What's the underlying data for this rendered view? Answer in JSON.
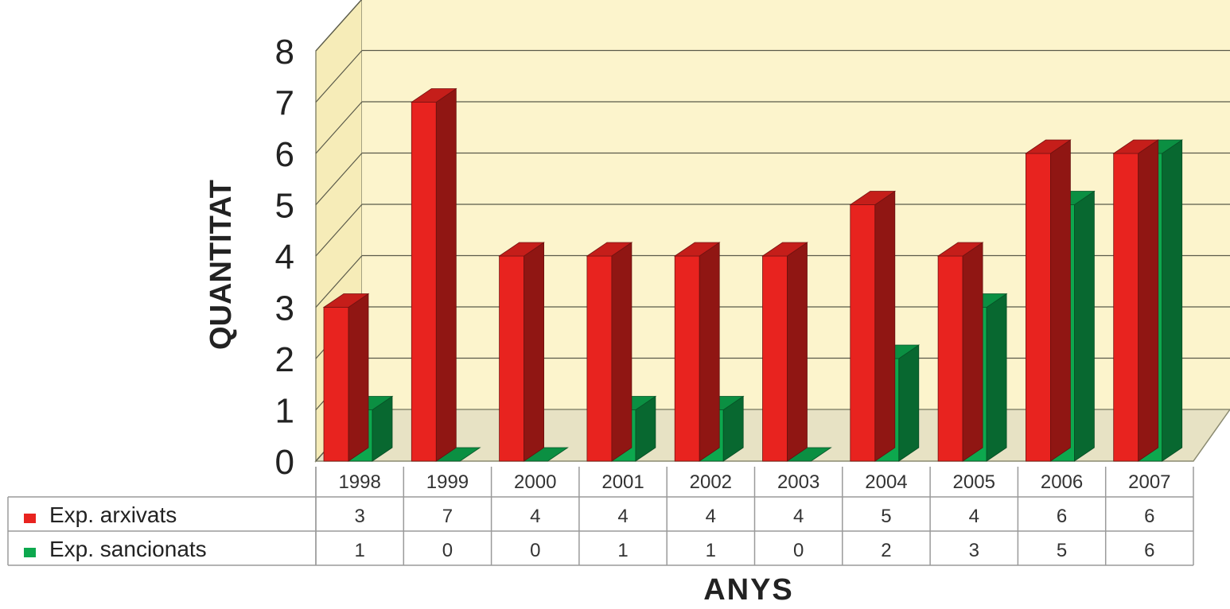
{
  "chart_data": {
    "type": "bar",
    "title": "",
    "xlabel": "ANYS",
    "ylabel": "QUANTITAT",
    "ylim": [
      0,
      8
    ],
    "yticks": [
      "0",
      "1",
      "2",
      "3",
      "4",
      "5",
      "6",
      "7",
      "8"
    ],
    "grid": true,
    "three_d": true,
    "legend_placement": "bottom-left data table",
    "categories": [
      "1998",
      "1999",
      "2000",
      "2001",
      "2002",
      "2003",
      "2004",
      "2005",
      "2006",
      "2007"
    ],
    "series": [
      {
        "name": "Exp. arxivats",
        "color": "#e8231f",
        "values": [
          3,
          7,
          4,
          4,
          4,
          4,
          5,
          4,
          6,
          6
        ],
        "table_values": [
          "3",
          "7",
          "4",
          "4",
          "4",
          "4",
          "5",
          "4",
          "6",
          "6"
        ]
      },
      {
        "name": "Exp. sancionats",
        "color": "#0da84e",
        "values": [
          1,
          0,
          0,
          1,
          1,
          0,
          2,
          3,
          5,
          6
        ],
        "table_values": [
          "1",
          "0",
          "0",
          "1",
          "1",
          "0",
          "2",
          "3",
          "5",
          "6"
        ]
      }
    ],
    "colors": {
      "back_wall": "#fcf4cc",
      "side_wall": "#f6ecb8",
      "grid": "#5a5a4a"
    }
  }
}
